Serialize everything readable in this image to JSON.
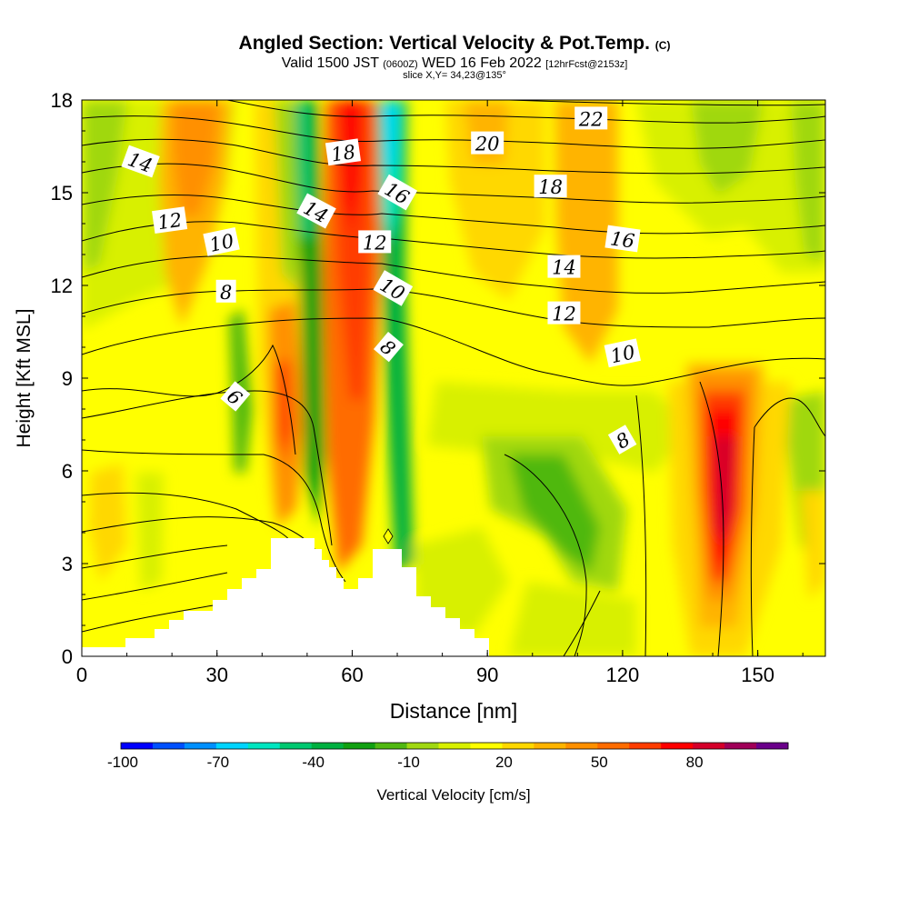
{
  "title": {
    "main": "Angled Section: Vertical Velocity & Pot.Temp.",
    "copyright": "(C)",
    "valid_prefix": "Valid 1500 JST",
    "valid_utc": "(0600Z)",
    "valid_date": "WED 16 Feb 2022",
    "forecast": "[12hrFcst@2153z]",
    "slice": "slice X,Y= 34,23@135°"
  },
  "colorbar": {
    "label": "Vertical Velocity [cm/s]",
    "tick_labels": [
      "-100",
      "-70",
      "-40",
      "-10",
      "20",
      "50",
      "80"
    ],
    "tick_values": [
      -100,
      -70,
      -40,
      -10,
      20,
      50,
      80
    ],
    "levels": [
      -100,
      -90,
      -80,
      -70,
      -60,
      -50,
      -40,
      -30,
      -20,
      -10,
      0,
      10,
      20,
      30,
      40,
      50,
      60,
      70,
      80,
      90,
      100
    ],
    "colors": [
      "#0000ff",
      "#0050ff",
      "#0090ff",
      "#00d4ff",
      "#00e6c0",
      "#00c870",
      "#00b040",
      "#10a010",
      "#50b810",
      "#a0d810",
      "#d8f000",
      "#ffff00",
      "#ffd800",
      "#ffb400",
      "#ff9000",
      "#ff6c00",
      "#ff3c00",
      "#ff0000",
      "#d4002a",
      "#a00058",
      "#6a008a"
    ]
  },
  "chart_data": {
    "type": "heatmap",
    "title": "Angled Section: Vertical Velocity & Pot.Temp.",
    "xlabel": "Distance [nm]",
    "ylabel": "Height [Kft MSL]",
    "xlim": [
      0,
      165
    ],
    "ylim": [
      0,
      18
    ],
    "x_ticks": [
      0,
      30,
      60,
      90,
      120,
      150
    ],
    "y_ticks": [
      0,
      3,
      6,
      9,
      12,
      15,
      18
    ],
    "x_tick_labels": [
      "0",
      "30",
      "60",
      "90",
      "120",
      "150"
    ],
    "y_tick_labels": [
      "0",
      "3",
      "6",
      "9",
      "12",
      "15",
      "18"
    ],
    "vertical_velocity_cms": [
      {
        "x_range": [
          0,
          16
        ],
        "y_range": [
          0,
          18
        ],
        "value": 10
      },
      {
        "x_range": [
          18,
          28
        ],
        "y_range": [
          10,
          18
        ],
        "value": 35
      },
      {
        "x_range": [
          32,
          36
        ],
        "y_range": [
          5,
          14
        ],
        "value": -20
      },
      {
        "x_range": [
          43,
          48
        ],
        "y_range": [
          6,
          10
        ],
        "value": 70
      },
      {
        "x_range": [
          50,
          55
        ],
        "y_range": [
          0,
          18
        ],
        "value": -30
      },
      {
        "x_range": [
          55,
          67
        ],
        "y_range": [
          4,
          18
        ],
        "value": 55
      },
      {
        "x_range": [
          67,
          72
        ],
        "y_range": [
          9,
          18
        ],
        "value": -60
      },
      {
        "x_range": [
          90,
          115
        ],
        "y_range": [
          0,
          8
        ],
        "value": -10
      },
      {
        "x_range": [
          135,
          148
        ],
        "y_range": [
          2,
          10
        ],
        "value": 80
      },
      {
        "x_range": [
          150,
          165
        ],
        "y_range": [
          6,
          18
        ],
        "value": -15
      }
    ],
    "pot_temp_contour_labels": [
      {
        "label": "14",
        "x": 13,
        "y": 16.0
      },
      {
        "label": "12",
        "x": 19.5,
        "y": 14.1
      },
      {
        "label": "10",
        "x": 31,
        "y": 13.4
      },
      {
        "label": "8",
        "x": 32,
        "y": 11.8
      },
      {
        "label": "6",
        "x": 34,
        "y": 8.4
      },
      {
        "label": "14",
        "x": 52,
        "y": 14.4
      },
      {
        "label": "18",
        "x": 58,
        "y": 16.3
      },
      {
        "label": "16",
        "x": 70,
        "y": 15.0
      },
      {
        "label": "12",
        "x": 65,
        "y": 13.4
      },
      {
        "label": "10",
        "x": 69,
        "y": 11.9
      },
      {
        "label": "8",
        "x": 68,
        "y": 10.0
      },
      {
        "label": "20",
        "x": 90,
        "y": 16.6
      },
      {
        "label": "22",
        "x": 113,
        "y": 17.4
      },
      {
        "label": "18",
        "x": 104,
        "y": 15.2
      },
      {
        "label": "16",
        "x": 120,
        "y": 13.5
      },
      {
        "label": "14",
        "x": 107,
        "y": 12.6
      },
      {
        "label": "12",
        "x": 107,
        "y": 11.1
      },
      {
        "label": "10",
        "x": 120,
        "y": 9.8
      },
      {
        "label": "8",
        "x": 120,
        "y": 7.0
      }
    ]
  }
}
